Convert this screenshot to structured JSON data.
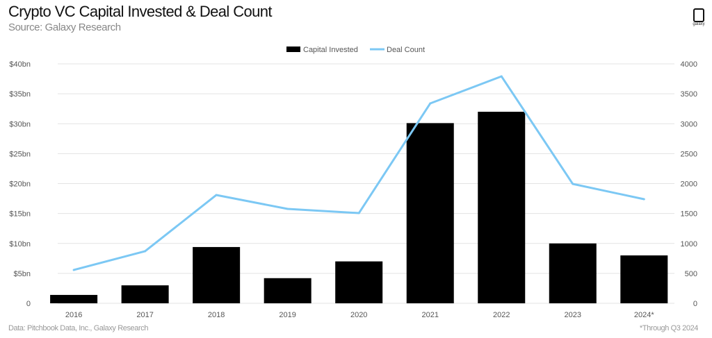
{
  "header": {
    "title": "Crypto VC Capital Invested & Deal Count",
    "subtitle": "Source: Galaxy Research",
    "logo_text": "galaxy"
  },
  "footer": {
    "left": "Data: Pitchbook Data, Inc., Galaxy Research",
    "right": "*Through Q3 2024"
  },
  "chart_data": {
    "type": "bar+line",
    "title": "Crypto VC Capital Invested & Deal Count",
    "categories": [
      "2016",
      "2017",
      "2018",
      "2019",
      "2020",
      "2021",
      "2022",
      "2023",
      "2024*"
    ],
    "series": [
      {
        "name": "Capital Invested",
        "type": "bar",
        "axis": "left",
        "unit": "$bn",
        "color": "#000000",
        "values": [
          1.4,
          3.0,
          9.4,
          4.2,
          7.0,
          30.1,
          32.0,
          10.0,
          8.0
        ]
      },
      {
        "name": "Deal Count",
        "type": "line",
        "axis": "right",
        "color": "#7cc8f4",
        "values": [
          557,
          870,
          1809,
          1577,
          1507,
          3339,
          3791,
          1994,
          1739
        ]
      }
    ],
    "left_axis": {
      "range": [
        0,
        40
      ],
      "ticks": [
        "0",
        "$5bn",
        "$10bn",
        "$15bn",
        "$20bn",
        "$25bn",
        "$30bn",
        "$35bn",
        "$40bn"
      ]
    },
    "right_axis": {
      "range": [
        0,
        4000
      ],
      "ticks": [
        "0",
        "500",
        "1000",
        "1500",
        "2000",
        "2500",
        "3000",
        "3500",
        "4000"
      ]
    },
    "grid": true,
    "legend": "top-center"
  }
}
